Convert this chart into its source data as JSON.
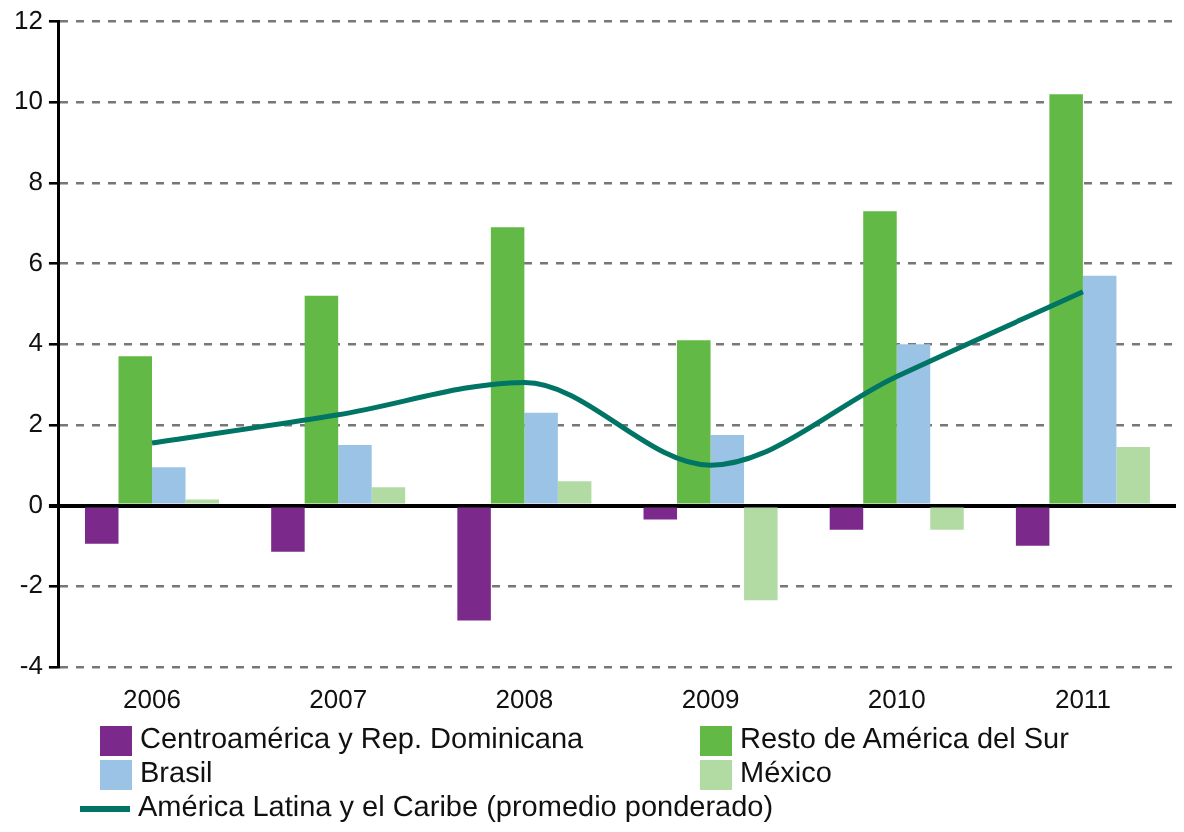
{
  "chart_data": {
    "type": "bar",
    "categories": [
      "2006",
      "2007",
      "2008",
      "2009",
      "2010",
      "2011"
    ],
    "series": [
      {
        "name": "Centroamérica y Rep. Dominicana",
        "color": "#7b2a8b",
        "values": [
          -0.95,
          -1.15,
          -2.85,
          -0.35,
          -0.6,
          -1.0
        ]
      },
      {
        "name": "Resto de América del Sur",
        "color": "#62b946",
        "values": [
          3.7,
          5.2,
          6.9,
          4.1,
          7.3,
          10.2
        ]
      },
      {
        "name": "Brasil",
        "color": "#9ac3e6",
        "values": [
          0.95,
          1.5,
          2.3,
          1.75,
          4.0,
          5.7
        ]
      },
      {
        "name": "México",
        "color": "#b1dba2",
        "values": [
          0.15,
          0.45,
          0.6,
          -2.35,
          -0.6,
          1.45
        ]
      },
      {
        "name": "América Latina y el Caribe (promedio ponderado)",
        "type": "line",
        "color": "#007465",
        "values": [
          1.55,
          2.25,
          3.05,
          1.0,
          3.2,
          5.3
        ]
      }
    ],
    "ylim": [
      -4,
      12
    ],
    "yticks": [
      -4,
      -2,
      0,
      2,
      4,
      6,
      8,
      10,
      12
    ],
    "grid": "y",
    "legend": "bottom",
    "marker": "none"
  }
}
